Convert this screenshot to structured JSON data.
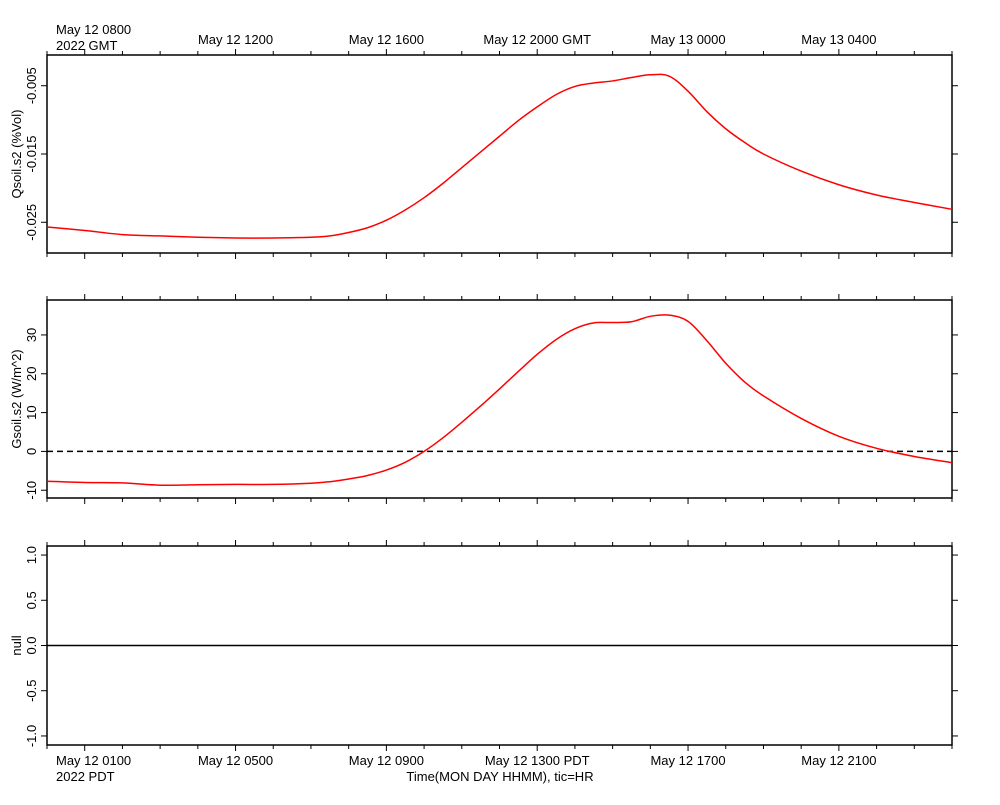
{
  "top_axis": {
    "first_label": "May 12 0800",
    "year_label": "2022 GMT",
    "tick_labels": [
      "May 12 1200",
      "May 12 1600",
      "May 12 2000 GMT",
      "May 13 0000",
      "May 13 0400"
    ]
  },
  "bottom_axis": {
    "first_label": "May 12 0100",
    "year_label": "2022 PDT",
    "tick_labels": [
      "May 12 0500",
      "May 12 0900",
      "May 12 1300 PDT",
      "May 12 1700",
      "May 12 2100"
    ],
    "xlabel": "Time(MON DAY HHMM), tic=HR"
  },
  "chart_data": [
    {
      "type": "line",
      "ylabel": "Qsoil.s2 (%Vol)",
      "xlim_hours_pdt": [
        0,
        24
      ],
      "ylim": [
        -0.0295,
        -0.0005
      ],
      "yticks": [
        -0.005,
        -0.015,
        -0.025
      ],
      "ytick_labels": [
        "-0.005",
        "-0.015",
        "-0.025"
      ],
      "grid": false,
      "series": [
        {
          "color": "#ff0000",
          "x": [
            0,
            1,
            2,
            3,
            4,
            5,
            6,
            7,
            7.5,
            8,
            8.5,
            9,
            9.5,
            10,
            10.5,
            11,
            11.5,
            12,
            12.5,
            13,
            13.5,
            14,
            14.5,
            15,
            15.5,
            16,
            16.5,
            17,
            17.5,
            18,
            18.5,
            19,
            20,
            21,
            22,
            23,
            24
          ],
          "y": [
            -0.0257,
            -0.0262,
            -0.0268,
            -0.027,
            -0.0272,
            -0.0273,
            -0.0273,
            -0.0272,
            -0.027,
            -0.0265,
            -0.0258,
            -0.0247,
            -0.0232,
            -0.0214,
            -0.0193,
            -0.017,
            -0.0147,
            -0.0124,
            -0.0101,
            -0.0081,
            -0.0063,
            -0.0051,
            -0.0046,
            -0.0043,
            -0.0038,
            -0.0034,
            -0.0036,
            -0.0058,
            -0.0088,
            -0.0113,
            -0.0133,
            -0.015,
            -0.0175,
            -0.0195,
            -0.021,
            -0.0221,
            -0.0231
          ]
        }
      ]
    },
    {
      "type": "line",
      "ylabel": "Gsoil.s2 (W/m^2)",
      "xlim_hours_pdt": [
        0,
        24
      ],
      "ylim": [
        -12,
        39
      ],
      "yticks": [
        30,
        20,
        10,
        0,
        -10
      ],
      "ytick_labels": [
        "30",
        "20",
        "10",
        "0",
        "-10"
      ],
      "reference_line": 0,
      "grid": false,
      "series": [
        {
          "color": "#ff0000",
          "x": [
            0,
            1,
            2,
            3,
            4,
            5,
            6,
            7,
            7.5,
            8,
            8.5,
            9,
            9.5,
            10,
            10.5,
            11,
            11.5,
            12,
            12.5,
            13,
            13.5,
            14,
            14.5,
            15,
            15.5,
            16,
            16.5,
            17,
            17.5,
            18,
            18.5,
            19,
            20,
            21,
            22,
            23,
            24
          ],
          "y": [
            -7.7,
            -8,
            -8.1,
            -8.7,
            -8.6,
            -8.5,
            -8.5,
            -8.2,
            -7.8,
            -7.1,
            -6.2,
            -4.8,
            -2.8,
            0,
            3.5,
            7.5,
            11.7,
            16.1,
            20.6,
            25,
            28.8,
            31.6,
            33.1,
            33.2,
            33.4,
            34.8,
            35.1,
            33.5,
            28.5,
            22.7,
            17.9,
            14.3,
            8.5,
            3.9,
            0.8,
            -1.3,
            -2.9
          ]
        }
      ]
    },
    {
      "type": "line",
      "ylabel": "null",
      "xlim_hours_pdt": [
        0,
        24
      ],
      "ylim": [
        -1.1,
        1.1
      ],
      "yticks": [
        1,
        0.5,
        0,
        -0.5,
        -1
      ],
      "ytick_labels": [
        "1.0",
        "0.5",
        "0.0",
        "-0.5",
        "-1.0"
      ],
      "grid": false,
      "series": [
        {
          "color": "#000000",
          "x": [
            0,
            24
          ],
          "y": [
            0,
            0
          ]
        }
      ]
    }
  ]
}
